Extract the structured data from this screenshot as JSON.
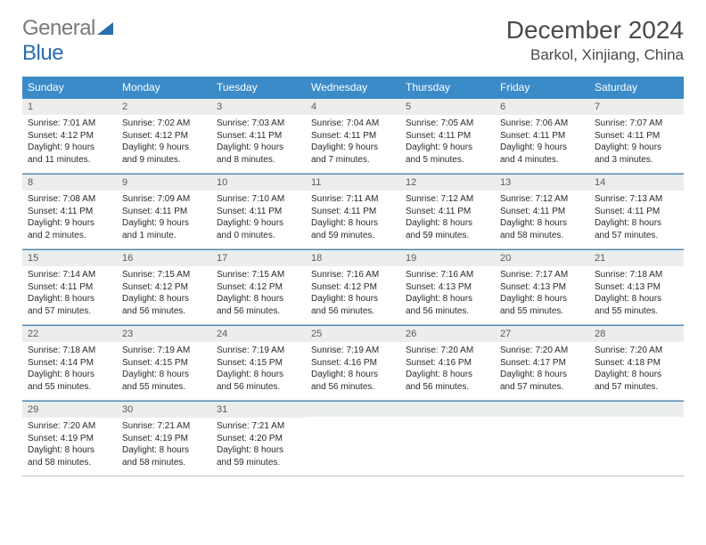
{
  "logo": {
    "part1": "General",
    "part2": "Blue"
  },
  "title": "December 2024",
  "location": "Barkol, Xinjiang, China",
  "colors": {
    "header_bg": "#3b8bc9",
    "daynum_bg": "#eceeee",
    "border": "#3b8bc9",
    "text": "#2a2a2a"
  },
  "weekdays": [
    "Sunday",
    "Monday",
    "Tuesday",
    "Wednesday",
    "Thursday",
    "Friday",
    "Saturday"
  ],
  "weeks": [
    [
      {
        "n": "1",
        "sunrise": "7:01 AM",
        "sunset": "4:12 PM",
        "daylight": "9 hours and 11 minutes."
      },
      {
        "n": "2",
        "sunrise": "7:02 AM",
        "sunset": "4:12 PM",
        "daylight": "9 hours and 9 minutes."
      },
      {
        "n": "3",
        "sunrise": "7:03 AM",
        "sunset": "4:11 PM",
        "daylight": "9 hours and 8 minutes."
      },
      {
        "n": "4",
        "sunrise": "7:04 AM",
        "sunset": "4:11 PM",
        "daylight": "9 hours and 7 minutes."
      },
      {
        "n": "5",
        "sunrise": "7:05 AM",
        "sunset": "4:11 PM",
        "daylight": "9 hours and 5 minutes."
      },
      {
        "n": "6",
        "sunrise": "7:06 AM",
        "sunset": "4:11 PM",
        "daylight": "9 hours and 4 minutes."
      },
      {
        "n": "7",
        "sunrise": "7:07 AM",
        "sunset": "4:11 PM",
        "daylight": "9 hours and 3 minutes."
      }
    ],
    [
      {
        "n": "8",
        "sunrise": "7:08 AM",
        "sunset": "4:11 PM",
        "daylight": "9 hours and 2 minutes."
      },
      {
        "n": "9",
        "sunrise": "7:09 AM",
        "sunset": "4:11 PM",
        "daylight": "9 hours and 1 minute."
      },
      {
        "n": "10",
        "sunrise": "7:10 AM",
        "sunset": "4:11 PM",
        "daylight": "9 hours and 0 minutes."
      },
      {
        "n": "11",
        "sunrise": "7:11 AM",
        "sunset": "4:11 PM",
        "daylight": "8 hours and 59 minutes."
      },
      {
        "n": "12",
        "sunrise": "7:12 AM",
        "sunset": "4:11 PM",
        "daylight": "8 hours and 59 minutes."
      },
      {
        "n": "13",
        "sunrise": "7:12 AM",
        "sunset": "4:11 PM",
        "daylight": "8 hours and 58 minutes."
      },
      {
        "n": "14",
        "sunrise": "7:13 AM",
        "sunset": "4:11 PM",
        "daylight": "8 hours and 57 minutes."
      }
    ],
    [
      {
        "n": "15",
        "sunrise": "7:14 AM",
        "sunset": "4:11 PM",
        "daylight": "8 hours and 57 minutes."
      },
      {
        "n": "16",
        "sunrise": "7:15 AM",
        "sunset": "4:12 PM",
        "daylight": "8 hours and 56 minutes."
      },
      {
        "n": "17",
        "sunrise": "7:15 AM",
        "sunset": "4:12 PM",
        "daylight": "8 hours and 56 minutes."
      },
      {
        "n": "18",
        "sunrise": "7:16 AM",
        "sunset": "4:12 PM",
        "daylight": "8 hours and 56 minutes."
      },
      {
        "n": "19",
        "sunrise": "7:16 AM",
        "sunset": "4:13 PM",
        "daylight": "8 hours and 56 minutes."
      },
      {
        "n": "20",
        "sunrise": "7:17 AM",
        "sunset": "4:13 PM",
        "daylight": "8 hours and 55 minutes."
      },
      {
        "n": "21",
        "sunrise": "7:18 AM",
        "sunset": "4:13 PM",
        "daylight": "8 hours and 55 minutes."
      }
    ],
    [
      {
        "n": "22",
        "sunrise": "7:18 AM",
        "sunset": "4:14 PM",
        "daylight": "8 hours and 55 minutes."
      },
      {
        "n": "23",
        "sunrise": "7:19 AM",
        "sunset": "4:15 PM",
        "daylight": "8 hours and 55 minutes."
      },
      {
        "n": "24",
        "sunrise": "7:19 AM",
        "sunset": "4:15 PM",
        "daylight": "8 hours and 56 minutes."
      },
      {
        "n": "25",
        "sunrise": "7:19 AM",
        "sunset": "4:16 PM",
        "daylight": "8 hours and 56 minutes."
      },
      {
        "n": "26",
        "sunrise": "7:20 AM",
        "sunset": "4:16 PM",
        "daylight": "8 hours and 56 minutes."
      },
      {
        "n": "27",
        "sunrise": "7:20 AM",
        "sunset": "4:17 PM",
        "daylight": "8 hours and 57 minutes."
      },
      {
        "n": "28",
        "sunrise": "7:20 AM",
        "sunset": "4:18 PM",
        "daylight": "8 hours and 57 minutes."
      }
    ],
    [
      {
        "n": "29",
        "sunrise": "7:20 AM",
        "sunset": "4:19 PM",
        "daylight": "8 hours and 58 minutes."
      },
      {
        "n": "30",
        "sunrise": "7:21 AM",
        "sunset": "4:19 PM",
        "daylight": "8 hours and 58 minutes."
      },
      {
        "n": "31",
        "sunrise": "7:21 AM",
        "sunset": "4:20 PM",
        "daylight": "8 hours and 59 minutes."
      },
      null,
      null,
      null,
      null
    ]
  ],
  "labels": {
    "sunrise": "Sunrise:",
    "sunset": "Sunset:",
    "daylight": "Daylight:"
  }
}
